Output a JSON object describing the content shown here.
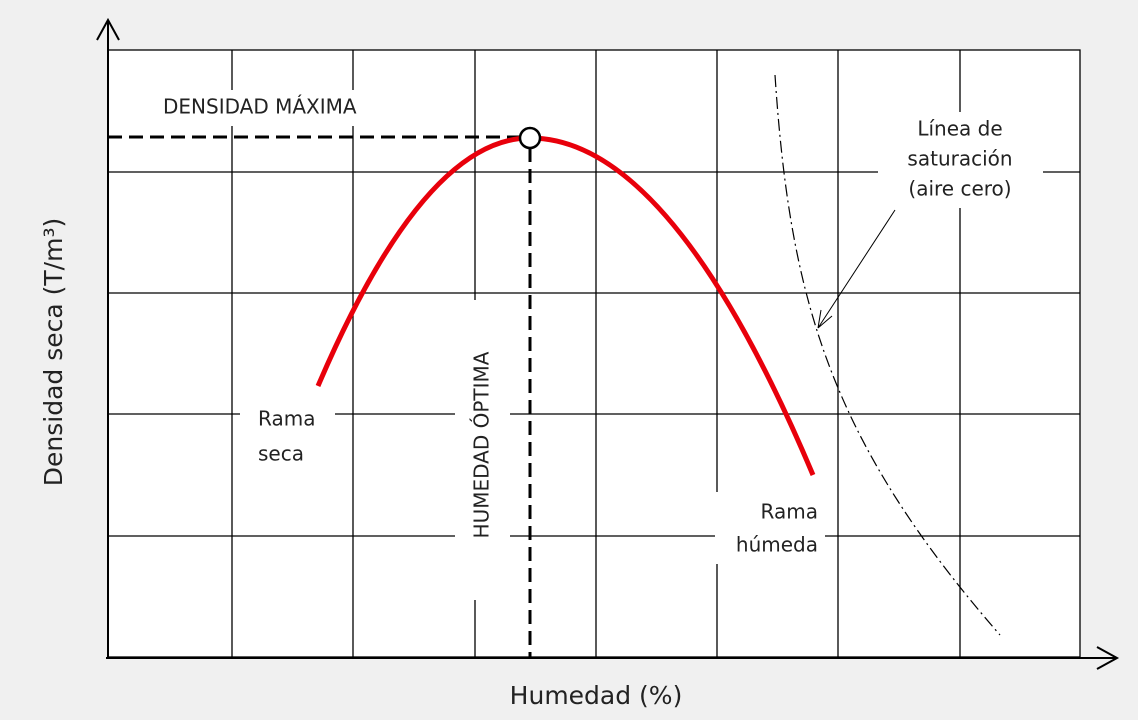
{
  "diagram": {
    "y_axis_label": "Densidad seca (T/m³)",
    "x_axis_label": "Humedad (%)",
    "max_density_label": "DENSIDAD MÁXIMA",
    "optimum_moisture_label": "HUMEDAD ÓPTIMA",
    "saturation_label": [
      "Línea de",
      "saturación",
      "(aire cero)"
    ],
    "dry_branch_label": [
      "Rama",
      "seca"
    ],
    "wet_branch_label": [
      "Rama",
      "húmeda"
    ]
  }
}
